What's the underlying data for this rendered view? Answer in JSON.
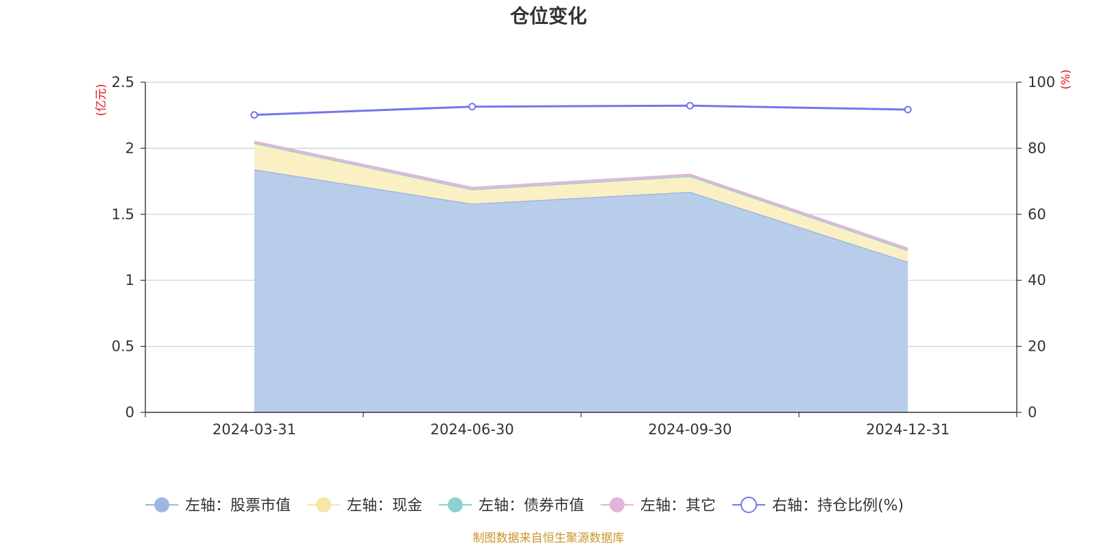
{
  "chart_data": {
    "type": "area",
    "title": "仓位变化",
    "x": [
      "2024-03-31",
      "2024-06-30",
      "2024-09-30",
      "2024-12-31"
    ],
    "left_axis": {
      "unit": "(亿元)",
      "ylim": [
        0,
        2.5
      ],
      "ticks": [
        "0",
        "0.5",
        "1",
        "1.5",
        "2",
        "2.5"
      ]
    },
    "right_axis": {
      "unit": "(%)",
      "ylim": [
        0,
        100
      ],
      "ticks": [
        "0",
        "20",
        "40",
        "60",
        "80",
        "100"
      ]
    },
    "grid": true,
    "legend_position": "bottom",
    "series": [
      {
        "name": "左轴：股票市值",
        "axis": "left",
        "stacked": true,
        "color": "#9db7e0",
        "fill": "#b8cde9",
        "values": [
          1.84,
          1.58,
          1.67,
          1.14
        ]
      },
      {
        "name": "左轴：现金",
        "axis": "left",
        "stacked": true,
        "color": "#f7e6a6",
        "fill": "#faf0c4",
        "values": [
          0.2,
          0.11,
          0.12,
          0.09
        ]
      },
      {
        "name": "左轴：债券市值",
        "axis": "left",
        "stacked": true,
        "color": "#8fd0d0",
        "fill": "#b5e2e2",
        "values": [
          0,
          0,
          0,
          0
        ]
      },
      {
        "name": "左轴：其它",
        "axis": "left",
        "stacked": true,
        "color": "#e6b3d8",
        "fill": "#efcfe6",
        "values": [
          0.01,
          0.01,
          0.01,
          0.01
        ]
      },
      {
        "name": "右轴：持仓比例(%)",
        "axis": "right",
        "type": "line",
        "color": "#7474ec",
        "values": [
          90.1,
          92.6,
          92.9,
          91.7
        ]
      }
    ]
  },
  "footer": {
    "source": "制图数据来自恒生聚源数据库"
  }
}
